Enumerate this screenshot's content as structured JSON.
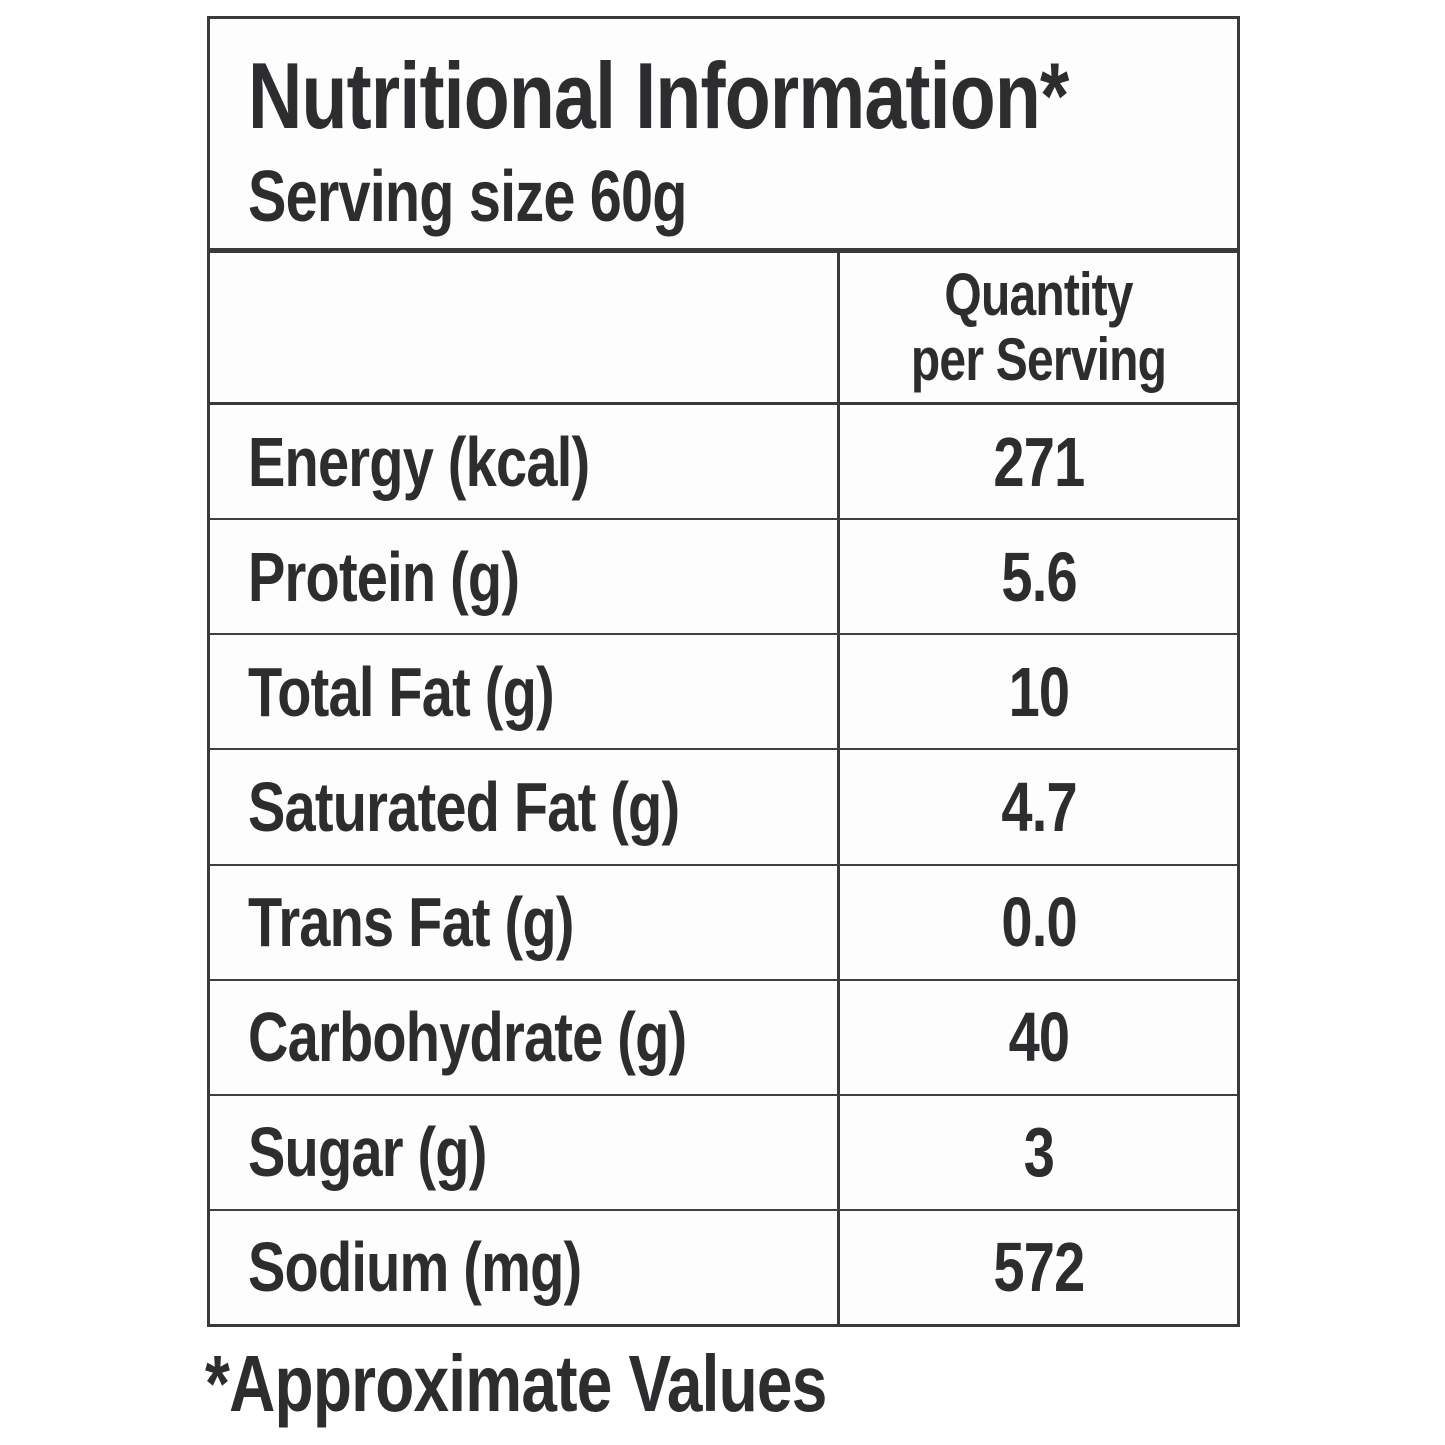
{
  "label": {
    "title": "Nutritional Information*",
    "serving_size": "Serving size 60g",
    "column_header": {
      "line1": "Quantity",
      "line2": "per Serving"
    },
    "rows": [
      {
        "label": "Energy (kcal)",
        "value": "271"
      },
      {
        "label": "Protein (g)",
        "value": "5.6"
      },
      {
        "label": "Total Fat (g)",
        "value": "10"
      },
      {
        "label": "Saturated Fat (g)",
        "value": "4.7"
      },
      {
        "label": "Trans Fat (g)",
        "value": "0.0"
      },
      {
        "label": "Carbohydrate (g)",
        "value": "40"
      },
      {
        "label": "Sugar (g)",
        "value": "3"
      },
      {
        "label": "Sodium (mg)",
        "value": "572"
      }
    ],
    "footnote": "*Approximate Values"
  },
  "colors": {
    "text": "#2d2d2f",
    "border": "#3a3a3c",
    "background": "#ffffff"
  }
}
